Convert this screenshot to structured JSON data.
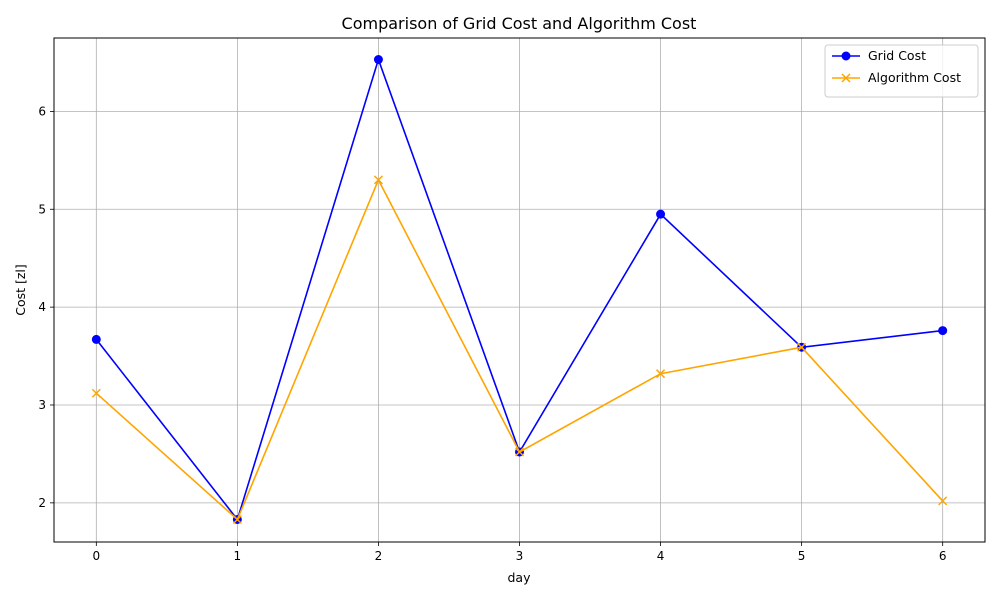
{
  "chart_data": {
    "type": "line",
    "title": "Comparison of Grid Cost and Algorithm Cost",
    "xlabel": "day",
    "ylabel": "Cost [zl]",
    "x": [
      0,
      1,
      2,
      3,
      4,
      5,
      6
    ],
    "xlim": [
      -0.3,
      6.3
    ],
    "ylim": [
      1.6,
      6.75
    ],
    "xticks": [
      "0",
      "1",
      "2",
      "3",
      "4",
      "5",
      "6"
    ],
    "yticks": [
      "2",
      "3",
      "4",
      "5",
      "6"
    ],
    "grid": true,
    "legend_position": "top-right",
    "series": [
      {
        "name": "Grid Cost",
        "color": "#0000ff",
        "marker": "circle",
        "values": [
          3.67,
          1.83,
          6.53,
          2.52,
          4.95,
          3.59,
          3.76
        ]
      },
      {
        "name": "Algorithm Cost",
        "color": "#ffa500",
        "marker": "x",
        "values": [
          3.12,
          1.83,
          5.3,
          2.52,
          3.32,
          3.59,
          2.02
        ]
      }
    ]
  }
}
